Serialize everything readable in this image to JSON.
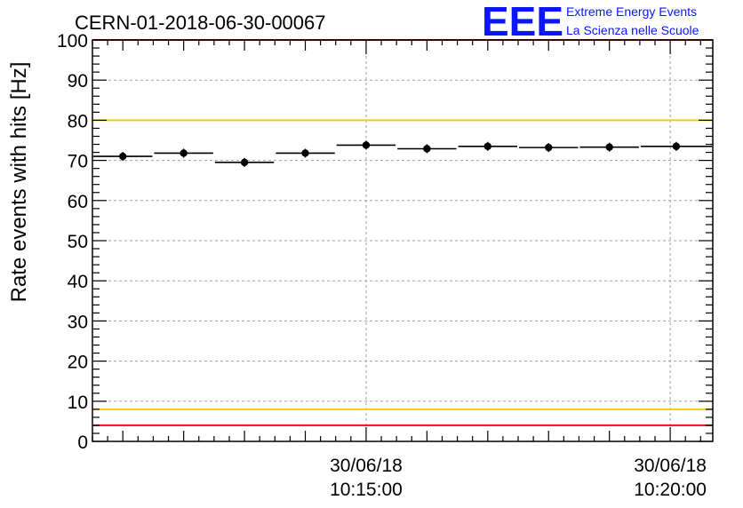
{
  "title": "CERN-01-2018-06-30-00067",
  "logo": {
    "mark": "EEE",
    "line1": "Extreme Energy Events",
    "line2": "La Scienza nelle Scuole",
    "color": "#0a16ff"
  },
  "chart_data": {
    "type": "scatter",
    "title": "CERN-01-2018-06-30-00067",
    "ylabel": "Rate events with hits [Hz]",
    "xlabel": "",
    "ylim": [
      0,
      100
    ],
    "yticks": [
      0,
      10,
      20,
      30,
      40,
      50,
      60,
      70,
      80,
      90,
      100
    ],
    "x_unit": "minutes (time of day)",
    "xlim": [
      10.5,
      20.7
    ],
    "xticks": [
      {
        "x": 15,
        "date": "30/06/18",
        "time": "10:15:00"
      },
      {
        "x": 20,
        "date": "30/06/18",
        "time": "10:20:00"
      }
    ],
    "grid": true,
    "series": [
      {
        "marker": "circle",
        "color": "#000000",
        "points": [
          {
            "x_from": 10.5,
            "x_to": 11.5,
            "y": 71.0
          },
          {
            "x_from": 11.5,
            "x_to": 12.5,
            "y": 71.8
          },
          {
            "x_from": 12.5,
            "x_to": 13.5,
            "y": 69.5
          },
          {
            "x_from": 13.5,
            "x_to": 14.5,
            "y": 71.8
          },
          {
            "x_from": 14.5,
            "x_to": 15.5,
            "y": 73.8
          },
          {
            "x_from": 15.5,
            "x_to": 16.5,
            "y": 72.9
          },
          {
            "x_from": 16.5,
            "x_to": 17.5,
            "y": 73.5
          },
          {
            "x_from": 17.5,
            "x_to": 18.5,
            "y": 73.2
          },
          {
            "x_from": 18.5,
            "x_to": 19.5,
            "y": 73.3
          },
          {
            "x_from": 19.5,
            "x_to": 20.7,
            "y": 73.5
          }
        ]
      }
    ],
    "reference_lines": [
      {
        "y": 100,
        "color": "#ee1111"
      },
      {
        "y": 80,
        "color": "#f2cc0c"
      },
      {
        "y": 8,
        "color": "#f2cc0c"
      },
      {
        "y": 4,
        "color": "#ee1111"
      }
    ]
  }
}
